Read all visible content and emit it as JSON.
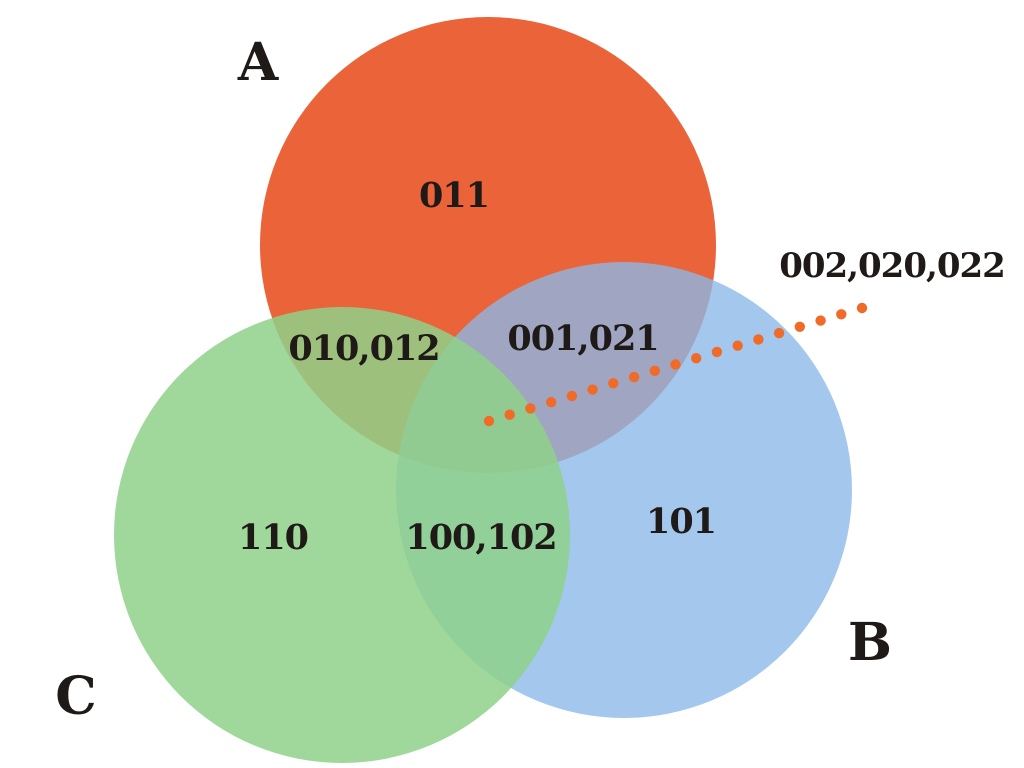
{
  "sets": {
    "a": {
      "label": "A",
      "color": "#e8572a"
    },
    "b": {
      "label": "B",
      "color": "#8ab8e8"
    },
    "c": {
      "label": "C",
      "color": "#8fd18a"
    }
  },
  "regions": {
    "a_only": "011",
    "b_only": "101",
    "c_only": "110",
    "a_and_c": "010,012",
    "a_and_b": "001,021",
    "b_and_c": "100,102"
  },
  "callout": {
    "text": "002,020,022",
    "dot_color": "#f06a28"
  }
}
